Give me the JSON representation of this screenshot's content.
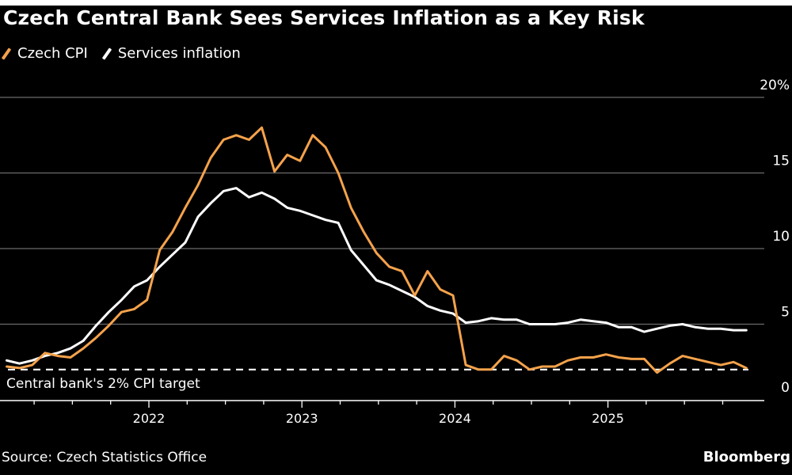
{
  "title": "Czech Central Bank Sees Services Inflation as a Key Risk",
  "legend": [
    {
      "label": "Czech CPI",
      "color": "#F5A24B"
    },
    {
      "label": "Services inflation",
      "color": "#FFFFFF"
    }
  ],
  "footer": {
    "source": "Source: Czech Statistics Office",
    "brand": "Bloomberg"
  },
  "chart_data": {
    "type": "line",
    "title": "Czech Central Bank Sees Services Inflation as a Key Risk",
    "xlabel": "",
    "ylabel": "",
    "x_start": "2021-01",
    "x_end": "2025-11",
    "frequency": "monthly",
    "x_tick_labels": [
      "2022",
      "2023",
      "2024",
      "2025"
    ],
    "y_tick_labels": [
      "0",
      "5",
      "10",
      "15",
      "20%"
    ],
    "y_ticks": [
      0,
      5,
      10,
      15,
      20
    ],
    "ylim": [
      0,
      20
    ],
    "grid": true,
    "y_axis_side": "right",
    "legend_position": "top-left",
    "reference_line": {
      "value": 2,
      "label": "Central bank's 2% CPI target",
      "style": "dashed",
      "color": "#FFFFFF"
    },
    "series": [
      {
        "name": "Czech CPI",
        "color": "#F5A24B",
        "values": [
          2.2,
          2.1,
          2.3,
          3.1,
          2.9,
          2.8,
          3.4,
          4.1,
          4.9,
          5.8,
          6.0,
          6.6,
          9.9,
          11.1,
          12.7,
          14.2,
          16.0,
          17.2,
          17.5,
          17.2,
          18.0,
          15.1,
          16.2,
          15.8,
          17.5,
          16.7,
          15.0,
          12.7,
          11.1,
          9.7,
          8.8,
          8.5,
          6.9,
          8.5,
          7.3,
          6.9,
          2.3,
          2.0,
          2.0,
          2.9,
          2.6,
          2.0,
          2.2,
          2.2,
          2.6,
          2.8,
          2.8,
          3.0,
          2.8,
          2.7,
          2.7,
          1.8,
          2.4,
          2.9,
          2.7,
          2.5,
          2.3,
          2.5,
          2.1
        ]
      },
      {
        "name": "Services inflation",
        "color": "#FFFFFF",
        "values": [
          2.6,
          2.4,
          2.6,
          2.9,
          3.1,
          3.4,
          3.9,
          4.9,
          5.8,
          6.6,
          7.5,
          7.9,
          8.8,
          9.6,
          10.4,
          12.1,
          13.0,
          13.8,
          14.0,
          13.4,
          13.7,
          13.3,
          12.7,
          12.5,
          12.2,
          11.9,
          11.7,
          9.9,
          8.9,
          7.9,
          7.6,
          7.2,
          6.8,
          6.2,
          5.9,
          5.7,
          5.1,
          5.2,
          5.4,
          5.3,
          5.3,
          5.0,
          5.0,
          5.0,
          5.1,
          5.3,
          5.2,
          5.1,
          4.8,
          4.8,
          4.5,
          4.7,
          4.9,
          5.0,
          4.8,
          4.7,
          4.7,
          4.6,
          4.6
        ]
      }
    ]
  }
}
